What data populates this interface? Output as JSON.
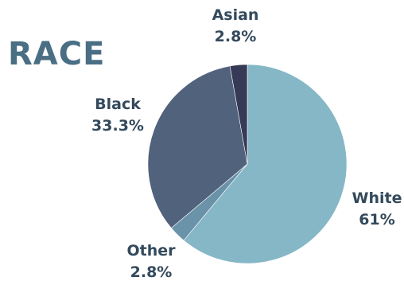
{
  "chart_data": {
    "type": "pie",
    "title": "RACE",
    "slices": [
      {
        "label": "White",
        "value_label": "61%",
        "value": 61,
        "color": "#86b7c7"
      },
      {
        "label": "Other",
        "value_label": "2.8%",
        "value": 2.8,
        "color": "#6a92a8"
      },
      {
        "label": "Black",
        "value_label": "33.3%",
        "value": 33.3,
        "color": "#51627d"
      },
      {
        "label": "Asian",
        "value_label": "2.8%",
        "value": 2.8,
        "color": "#363a56"
      }
    ],
    "start_angle_deg": 0,
    "direction": "clockwise",
    "legend": "none"
  }
}
